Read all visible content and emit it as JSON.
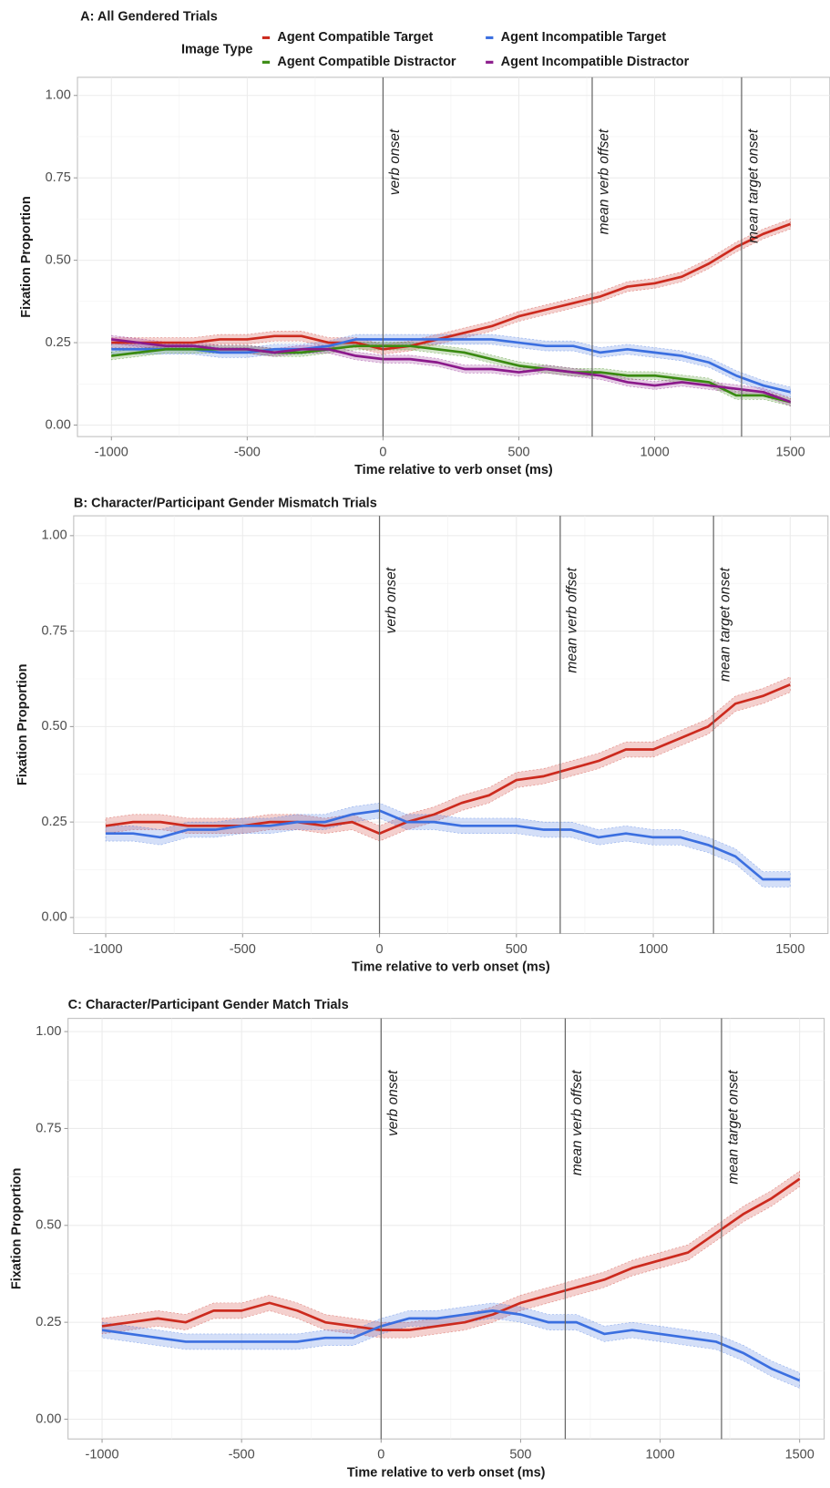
{
  "chart_data": [
    {
      "type": "line",
      "title": "A: All Gendered Trials",
      "x_label": "Time relative to verb onset (ms)",
      "y_label": "Fixation Proportion",
      "legend_title": "Image Type",
      "grid": true,
      "x": [
        -1000,
        -900,
        -800,
        -700,
        -600,
        -500,
        -400,
        -300,
        -200,
        -100,
        0,
        100,
        200,
        300,
        400,
        500,
        600,
        700,
        800,
        900,
        1000,
        1100,
        1200,
        1300,
        1400,
        1500
      ],
      "series": [
        {
          "name": "Agent Compatible Target",
          "color": "#cc2a1e",
          "se": 0.015,
          "values": [
            0.25,
            0.25,
            0.25,
            0.25,
            0.26,
            0.26,
            0.27,
            0.27,
            0.25,
            0.25,
            0.23,
            0.24,
            0.26,
            0.28,
            0.3,
            0.33,
            0.35,
            0.37,
            0.39,
            0.42,
            0.43,
            0.45,
            0.49,
            0.54,
            0.58,
            0.61
          ]
        },
        {
          "name": "Agent Incompatible Target",
          "color": "#3b6fe0",
          "se": 0.015,
          "values": [
            0.23,
            0.23,
            0.23,
            0.23,
            0.22,
            0.22,
            0.23,
            0.23,
            0.24,
            0.26,
            0.26,
            0.26,
            0.26,
            0.26,
            0.26,
            0.25,
            0.24,
            0.24,
            0.22,
            0.23,
            0.22,
            0.21,
            0.19,
            0.15,
            0.12,
            0.1
          ]
        },
        {
          "name": "Agent Compatible Distractor",
          "color": "#3a8a12",
          "se": 0.012,
          "values": [
            0.21,
            0.22,
            0.23,
            0.23,
            0.23,
            0.23,
            0.22,
            0.22,
            0.23,
            0.24,
            0.24,
            0.24,
            0.23,
            0.22,
            0.2,
            0.18,
            0.17,
            0.16,
            0.16,
            0.15,
            0.15,
            0.14,
            0.13,
            0.09,
            0.09,
            0.07
          ]
        },
        {
          "name": "Agent Incompatible Distractor",
          "color": "#8b1a8b",
          "se": 0.012,
          "values": [
            0.26,
            0.25,
            0.24,
            0.24,
            0.23,
            0.23,
            0.22,
            0.23,
            0.23,
            0.21,
            0.2,
            0.2,
            0.19,
            0.17,
            0.17,
            0.16,
            0.17,
            0.16,
            0.15,
            0.13,
            0.12,
            0.13,
            0.12,
            0.11,
            0.1,
            0.07
          ]
        }
      ],
      "vlines": [
        {
          "x": 0,
          "label": "verb onset"
        },
        {
          "x": 770,
          "label": "mean verb offset"
        },
        {
          "x": 1320,
          "label": "mean target onset"
        }
      ],
      "xlim": [
        -1125,
        1645
      ],
      "ylim": [
        -0.035,
        1.055
      ],
      "xticks": [
        -1000,
        -500,
        0,
        500,
        1000,
        1500
      ],
      "yticks": [
        {
          "value": 0,
          "label": "0.00"
        },
        {
          "value": 0.25,
          "label": "0.25"
        },
        {
          "value": 0.5,
          "label": "0.50"
        },
        {
          "value": 0.75,
          "label": "0.75"
        },
        {
          "value": 1,
          "label": "1.00"
        }
      ]
    },
    {
      "type": "line",
      "title": "B: Character/Participant Gender Mismatch Trials",
      "x_label": "Time relative to verb onset (ms)",
      "y_label": "Fixation Proportion",
      "grid": true,
      "x": [
        -1000,
        -900,
        -800,
        -700,
        -600,
        -500,
        -400,
        -300,
        -200,
        -100,
        0,
        100,
        200,
        300,
        400,
        500,
        600,
        700,
        800,
        900,
        1000,
        1100,
        1200,
        1300,
        1400,
        1500
      ],
      "series": [
        {
          "color": "#cc2a1e",
          "se": 0.02,
          "values": [
            0.24,
            0.25,
            0.25,
            0.24,
            0.24,
            0.24,
            0.25,
            0.25,
            0.24,
            0.25,
            0.22,
            0.25,
            0.27,
            0.3,
            0.32,
            0.36,
            0.37,
            0.39,
            0.41,
            0.44,
            0.44,
            0.47,
            0.5,
            0.56,
            0.58,
            0.61
          ]
        },
        {
          "color": "#3b6fe0",
          "se": 0.02,
          "values": [
            0.22,
            0.22,
            0.21,
            0.23,
            0.23,
            0.24,
            0.24,
            0.25,
            0.25,
            0.27,
            0.28,
            0.25,
            0.25,
            0.24,
            0.24,
            0.24,
            0.23,
            0.23,
            0.21,
            0.22,
            0.21,
            0.21,
            0.19,
            0.16,
            0.1,
            0.1
          ]
        }
      ],
      "vlines": [
        {
          "x": 0,
          "label": "verb onset"
        },
        {
          "x": 660,
          "label": "mean verb offset"
        },
        {
          "x": 1220,
          "label": "mean target onset"
        }
      ],
      "xlim": [
        -1117,
        1638
      ],
      "ylim": [
        -0.042,
        1.052
      ],
      "xticks": [
        -1000,
        -500,
        0,
        500,
        1000,
        1500
      ],
      "yticks": [
        {
          "value": 0,
          "label": "0.00"
        },
        {
          "value": 0.25,
          "label": "0.25"
        },
        {
          "value": 0.5,
          "label": "0.50"
        },
        {
          "value": 0.75,
          "label": "0.75"
        },
        {
          "value": 1,
          "label": "1.00"
        }
      ]
    },
    {
      "type": "line",
      "title": "C: Character/Participant Gender Match Trials",
      "x_label": "Time relative to verb onset (ms)",
      "y_label": "Fixation Proportion",
      "grid": true,
      "x": [
        -1000,
        -900,
        -800,
        -700,
        -600,
        -500,
        -400,
        -300,
        -200,
        -100,
        0,
        100,
        200,
        300,
        400,
        500,
        600,
        700,
        800,
        900,
        1000,
        1100,
        1200,
        1300,
        1400,
        1500
      ],
      "series": [
        {
          "color": "#cc2a1e",
          "se": 0.02,
          "values": [
            0.24,
            0.25,
            0.26,
            0.25,
            0.28,
            0.28,
            0.3,
            0.28,
            0.25,
            0.24,
            0.23,
            0.23,
            0.24,
            0.25,
            0.27,
            0.3,
            0.32,
            0.34,
            0.36,
            0.39,
            0.41,
            0.43,
            0.48,
            0.53,
            0.57,
            0.62
          ]
        },
        {
          "color": "#3b6fe0",
          "se": 0.02,
          "values": [
            0.23,
            0.22,
            0.21,
            0.2,
            0.2,
            0.2,
            0.2,
            0.2,
            0.21,
            0.21,
            0.24,
            0.26,
            0.26,
            0.27,
            0.28,
            0.27,
            0.25,
            0.25,
            0.22,
            0.23,
            0.22,
            0.21,
            0.2,
            0.17,
            0.13,
            0.1
          ]
        }
      ],
      "vlines": [
        {
          "x": 0,
          "label": "verb onset"
        },
        {
          "x": 660,
          "label": "mean verb offset"
        },
        {
          "x": 1220,
          "label": "mean target onset"
        }
      ],
      "xlim": [
        -1122,
        1588
      ],
      "ylim": [
        -0.051,
        1.034
      ],
      "xticks": [
        -1000,
        -500,
        0,
        500,
        1000,
        1500
      ],
      "yticks": [
        {
          "value": 0,
          "label": "0.00"
        },
        {
          "value": 0.25,
          "label": "0.25"
        },
        {
          "value": 0.5,
          "label": "0.50"
        },
        {
          "value": 0.75,
          "label": "0.75"
        },
        {
          "value": 1,
          "label": "1.00"
        }
      ]
    }
  ]
}
